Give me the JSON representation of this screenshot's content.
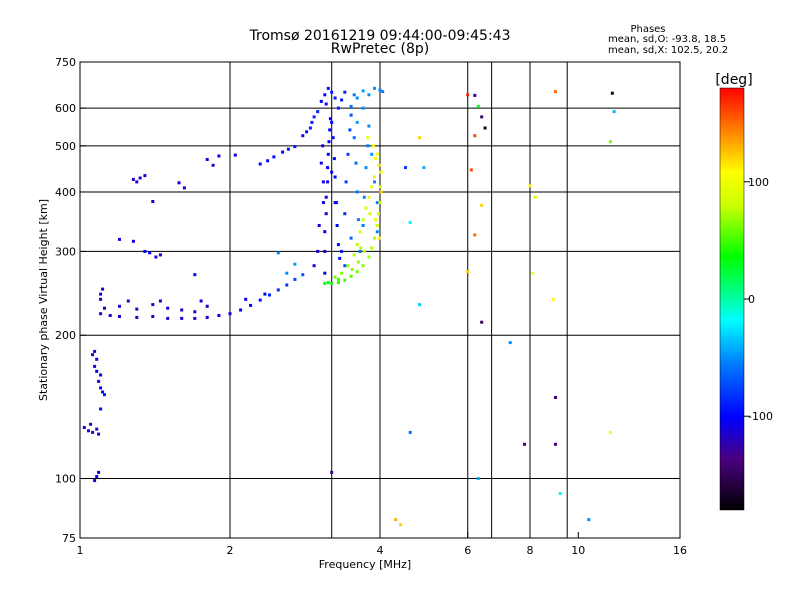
{
  "chart_data": {
    "type": "scatter",
    "title": "Tromsø 20161219 09:44:00-09:45:43",
    "subtitle": "RwPretec (8p)",
    "xlabel": "Frequency [MHz]",
    "ylabel": "Stationary phase Virtual Height [km]",
    "x_scale": "log2",
    "y_scale": "log",
    "xlim": [
      1,
      16
    ],
    "ylim": [
      75,
      750
    ],
    "x_ticks": [
      "1",
      "2",
      "4",
      "6",
      "8",
      "10",
      "16"
    ],
    "x_grid": [
      2,
      3.2,
      4,
      6,
      6.7,
      8,
      9.5
    ],
    "y_ticks": [
      "75",
      "100",
      "200",
      "300",
      "400",
      "500",
      "600",
      "750"
    ],
    "y_grid": [
      100,
      200,
      300,
      400,
      500,
      600
    ],
    "grid": true,
    "phase_info": {
      "heading": "Phases",
      "line1": "mean, sd,O: -93.8, 18.5",
      "line2": "mean, sd,X: 102.5, 20.2"
    },
    "colorbar": {
      "label": "[deg]",
      "min": -180,
      "max": 180,
      "ticks": [
        "100",
        "0",
        "-100"
      ],
      "tick_values": [
        100,
        0,
        -100
      ]
    },
    "series": [
      {
        "points": [
          [
            1.02,
            128,
            -120
          ],
          [
            1.04,
            126,
            -118
          ],
          [
            1.06,
            125,
            -122
          ],
          [
            1.08,
            127,
            -115
          ],
          [
            1.09,
            124,
            -110
          ],
          [
            1.05,
            130,
            -125
          ],
          [
            1.07,
            172,
            -112
          ],
          [
            1.08,
            168,
            -108
          ],
          [
            1.09,
            160,
            -104
          ],
          [
            1.1,
            155,
            -100
          ],
          [
            1.08,
            178,
            -115
          ],
          [
            1.11,
            152,
            -98
          ],
          [
            1.07,
            185,
            -118
          ],
          [
            1.06,
            182,
            -110
          ],
          [
            1.1,
            165,
            -106
          ],
          [
            1.08,
            101,
            -110
          ],
          [
            1.09,
            103,
            -105
          ],
          [
            1.07,
            99,
            -115
          ],
          [
            1.12,
            150,
            -92
          ],
          [
            1.1,
            140,
            -96
          ],
          [
            1.1,
            222,
            -120
          ],
          [
            1.15,
            220,
            -118
          ],
          [
            1.2,
            219,
            -115
          ],
          [
            1.3,
            218,
            -112
          ],
          [
            1.4,
            219,
            -120
          ],
          [
            1.5,
            217,
            -116
          ],
          [
            1.6,
            217,
            -114
          ],
          [
            1.7,
            217,
            -118
          ],
          [
            1.8,
            218,
            -112
          ],
          [
            1.9,
            220,
            -110
          ],
          [
            2.0,
            222,
            -108
          ],
          [
            2.1,
            226,
            -104
          ],
          [
            2.2,
            231,
            -100
          ],
          [
            2.3,
            237,
            -95
          ],
          [
            2.4,
            243,
            -90
          ],
          [
            2.5,
            249,
            -85
          ],
          [
            2.6,
            255,
            -80
          ],
          [
            2.7,
            262,
            -75
          ],
          [
            2.8,
            268,
            -70
          ],
          [
            1.12,
            228,
            -122
          ],
          [
            1.2,
            230,
            -118
          ],
          [
            1.3,
            227,
            -120
          ],
          [
            1.4,
            232,
            -116
          ],
          [
            1.5,
            228,
            -114
          ],
          [
            1.6,
            226,
            -112
          ],
          [
            1.7,
            224,
            -118
          ],
          [
            1.8,
            230,
            -115
          ],
          [
            1.25,
            236,
            -116
          ],
          [
            1.45,
            236,
            -113
          ],
          [
            1.75,
            236,
            -110
          ],
          [
            1.1,
            244,
            -116
          ],
          [
            1.11,
            250,
            -112
          ],
          [
            1.1,
            238,
            -114
          ],
          [
            2.15,
            238,
            -106
          ],
          [
            2.35,
            244,
            -100
          ],
          [
            1.2,
            318,
            -110
          ],
          [
            1.28,
            315,
            -108
          ],
          [
            1.38,
            298,
            -105
          ],
          [
            1.42,
            292,
            -110
          ],
          [
            1.45,
            295,
            -112
          ],
          [
            1.35,
            300,
            -104
          ],
          [
            1.28,
            425,
            -116
          ],
          [
            1.32,
            428,
            -112
          ],
          [
            1.35,
            433,
            -114
          ],
          [
            1.3,
            420,
            -110
          ],
          [
            1.4,
            382,
            -108
          ],
          [
            1.58,
            418,
            -105
          ],
          [
            1.62,
            408,
            -110
          ],
          [
            1.8,
            468,
            -118
          ],
          [
            1.85,
            455,
            -115
          ],
          [
            1.9,
            476,
            -112
          ],
          [
            2.05,
            478,
            -106
          ],
          [
            1.7,
            268,
            -100
          ],
          [
            2.3,
            458,
            -100
          ],
          [
            2.38,
            465,
            -98
          ],
          [
            2.45,
            474,
            -95
          ],
          [
            2.55,
            485,
            -100
          ],
          [
            2.62,
            492,
            -96
          ],
          [
            2.7,
            498,
            -92
          ],
          [
            2.8,
            525,
            -98
          ],
          [
            2.85,
            535,
            -96
          ],
          [
            2.9,
            545,
            -90
          ],
          [
            2.92,
            560,
            -92
          ],
          [
            2.95,
            575,
            -88
          ],
          [
            3.0,
            590,
            -90
          ],
          [
            2.5,
            298,
            -55
          ],
          [
            2.6,
            270,
            -50
          ],
          [
            2.7,
            282,
            -45
          ],
          [
            3.05,
            620,
            -105
          ],
          [
            3.1,
            640,
            -100
          ],
          [
            3.12,
            612,
            -96
          ],
          [
            3.15,
            660,
            -98
          ],
          [
            3.2,
            648,
            -92
          ],
          [
            3.25,
            630,
            -95
          ],
          [
            3.3,
            600,
            -90
          ],
          [
            3.35,
            624,
            -92
          ],
          [
            3.4,
            648,
            -88
          ],
          [
            3.5,
            605,
            -60
          ],
          [
            3.55,
            640,
            -55
          ],
          [
            3.6,
            630,
            -50
          ],
          [
            3.7,
            652,
            -45
          ],
          [
            3.8,
            640,
            -50
          ],
          [
            3.9,
            660,
            -48
          ],
          [
            4.0,
            655,
            -52
          ],
          [
            4.05,
            650,
            -55
          ],
          [
            3.1,
            270,
            -112
          ],
          [
            3.1,
            300,
            -110
          ],
          [
            3.1,
            330,
            -108
          ],
          [
            3.12,
            360,
            -112
          ],
          [
            3.12,
            390,
            -106
          ],
          [
            3.14,
            420,
            -108
          ],
          [
            3.14,
            450,
            -104
          ],
          [
            3.15,
            480,
            -106
          ],
          [
            3.16,
            510,
            -102
          ],
          [
            3.17,
            540,
            -100
          ],
          [
            3.18,
            570,
            -104
          ],
          [
            3.2,
            560,
            -98
          ],
          [
            3.22,
            520,
            -96
          ],
          [
            3.24,
            470,
            -100
          ],
          [
            3.25,
            430,
            -98
          ],
          [
            3.27,
            380,
            -96
          ],
          [
            3.28,
            340,
            -100
          ],
          [
            3.3,
            310,
            -98
          ],
          [
            3.32,
            290,
            -95
          ],
          [
            3.05,
            460,
            -110
          ],
          [
            3.07,
            500,
            -108
          ],
          [
            3.08,
            420,
            -112
          ],
          [
            3.2,
            440,
            -104
          ],
          [
            3.25,
            380,
            -100
          ],
          [
            3.35,
            300,
            -92
          ],
          [
            3.4,
            360,
            -85
          ],
          [
            3.42,
            420,
            -80
          ],
          [
            3.45,
            480,
            -78
          ],
          [
            3.48,
            540,
            -75
          ],
          [
            3.5,
            580,
            -70
          ],
          [
            3.55,
            520,
            -60
          ],
          [
            3.58,
            460,
            -62
          ],
          [
            3.6,
            400,
            -58
          ],
          [
            3.62,
            350,
            -55
          ],
          [
            3.65,
            300,
            -60
          ],
          [
            3.7,
            340,
            -55
          ],
          [
            3.72,
            390,
            -52
          ],
          [
            3.75,
            450,
            -50
          ],
          [
            3.78,
            500,
            -55
          ],
          [
            3.8,
            550,
            -50
          ],
          [
            3.85,
            480,
            -48
          ],
          [
            3.9,
            420,
            -50
          ],
          [
            3.6,
            560,
            -45
          ],
          [
            3.7,
            600,
            -50
          ],
          [
            3.95,
            380,
            -55
          ],
          [
            3.95,
            330,
            -52
          ],
          [
            3.5,
            320,
            -65
          ],
          [
            3.4,
            280,
            -70
          ],
          [
            3.0,
            300,
            -110
          ],
          [
            2.95,
            280,
            -108
          ],
          [
            3.02,
            340,
            -112
          ],
          [
            3.08,
            380,
            -106
          ],
          [
            3.1,
            257,
            30
          ],
          [
            3.2,
            257,
            40
          ],
          [
            3.3,
            258,
            45
          ],
          [
            3.4,
            261,
            50
          ],
          [
            3.5,
            266,
            55
          ],
          [
            3.6,
            272,
            60
          ],
          [
            3.7,
            280,
            65
          ],
          [
            3.8,
            292,
            70
          ],
          [
            3.85,
            305,
            72
          ],
          [
            3.9,
            320,
            75
          ],
          [
            3.95,
            340,
            80
          ],
          [
            3.97,
            360,
            85
          ],
          [
            4.0,
            380,
            90
          ],
          [
            4.01,
            410,
            95
          ],
          [
            4.02,
            440,
            100
          ],
          [
            3.92,
            470,
            105
          ],
          [
            3.9,
            430,
            98
          ],
          [
            3.85,
            410,
            92
          ],
          [
            3.8,
            390,
            95
          ],
          [
            3.75,
            370,
            88
          ],
          [
            3.7,
            350,
            85
          ],
          [
            3.65,
            330,
            82
          ],
          [
            3.6,
            310,
            78
          ],
          [
            3.55,
            295,
            74
          ],
          [
            3.45,
            280,
            70
          ],
          [
            3.35,
            270,
            65
          ],
          [
            3.25,
            265,
            60
          ],
          [
            3.88,
            500,
            100
          ],
          [
            3.95,
            480,
            110
          ],
          [
            3.98,
            455,
            115
          ],
          [
            4.02,
            400,
            120
          ],
          [
            3.78,
            520,
            96
          ],
          [
            3.72,
            300,
            80
          ],
          [
            3.62,
            285,
            70
          ],
          [
            3.52,
            275,
            66
          ],
          [
            3.3,
            262,
            50
          ],
          [
            3.15,
            258,
            35
          ],
          [
            3.98,
            320,
            110
          ],
          [
            3.92,
            350,
            100
          ],
          [
            3.82,
            360,
            88
          ],
          [
            3.66,
            305,
            72
          ],
          [
            6.0,
            640,
            170
          ],
          [
            6.2,
            638,
            -120
          ],
          [
            9.0,
            650,
            150
          ],
          [
            11.7,
            645,
            -170
          ],
          [
            6.3,
            605,
            30
          ],
          [
            11.8,
            590,
            -40
          ],
          [
            6.4,
            575,
            -150
          ],
          [
            6.5,
            545,
            -170
          ],
          [
            6.2,
            525,
            160
          ],
          [
            4.8,
            520,
            120
          ],
          [
            11.6,
            510,
            60
          ],
          [
            4.9,
            450,
            -40
          ],
          [
            4.5,
            450,
            -80
          ],
          [
            6.1,
            445,
            160
          ],
          [
            8.0,
            412,
            110
          ],
          [
            8.2,
            390,
            90
          ],
          [
            6.4,
            375,
            120
          ],
          [
            4.6,
            345,
            -20
          ],
          [
            6.2,
            325,
            150
          ],
          [
            6.0,
            272,
            120
          ],
          [
            8.1,
            270,
            100
          ],
          [
            8.9,
            238,
            110
          ],
          [
            4.8,
            232,
            -30
          ],
          [
            6.4,
            213,
            -150
          ],
          [
            7.3,
            193,
            -50
          ],
          [
            9.0,
            148,
            -140
          ],
          [
            4.6,
            125,
            -60
          ],
          [
            7.8,
            118,
            -140
          ],
          [
            9.0,
            118,
            -140
          ],
          [
            11.6,
            125,
            110
          ],
          [
            3.2,
            103,
            -130
          ],
          [
            6.3,
            100,
            -40
          ],
          [
            9.2,
            93,
            -20
          ],
          [
            4.3,
            82,
            130
          ],
          [
            4.4,
            80,
            120
          ],
          [
            10.5,
            82,
            -50
          ]
        ]
      }
    ]
  }
}
